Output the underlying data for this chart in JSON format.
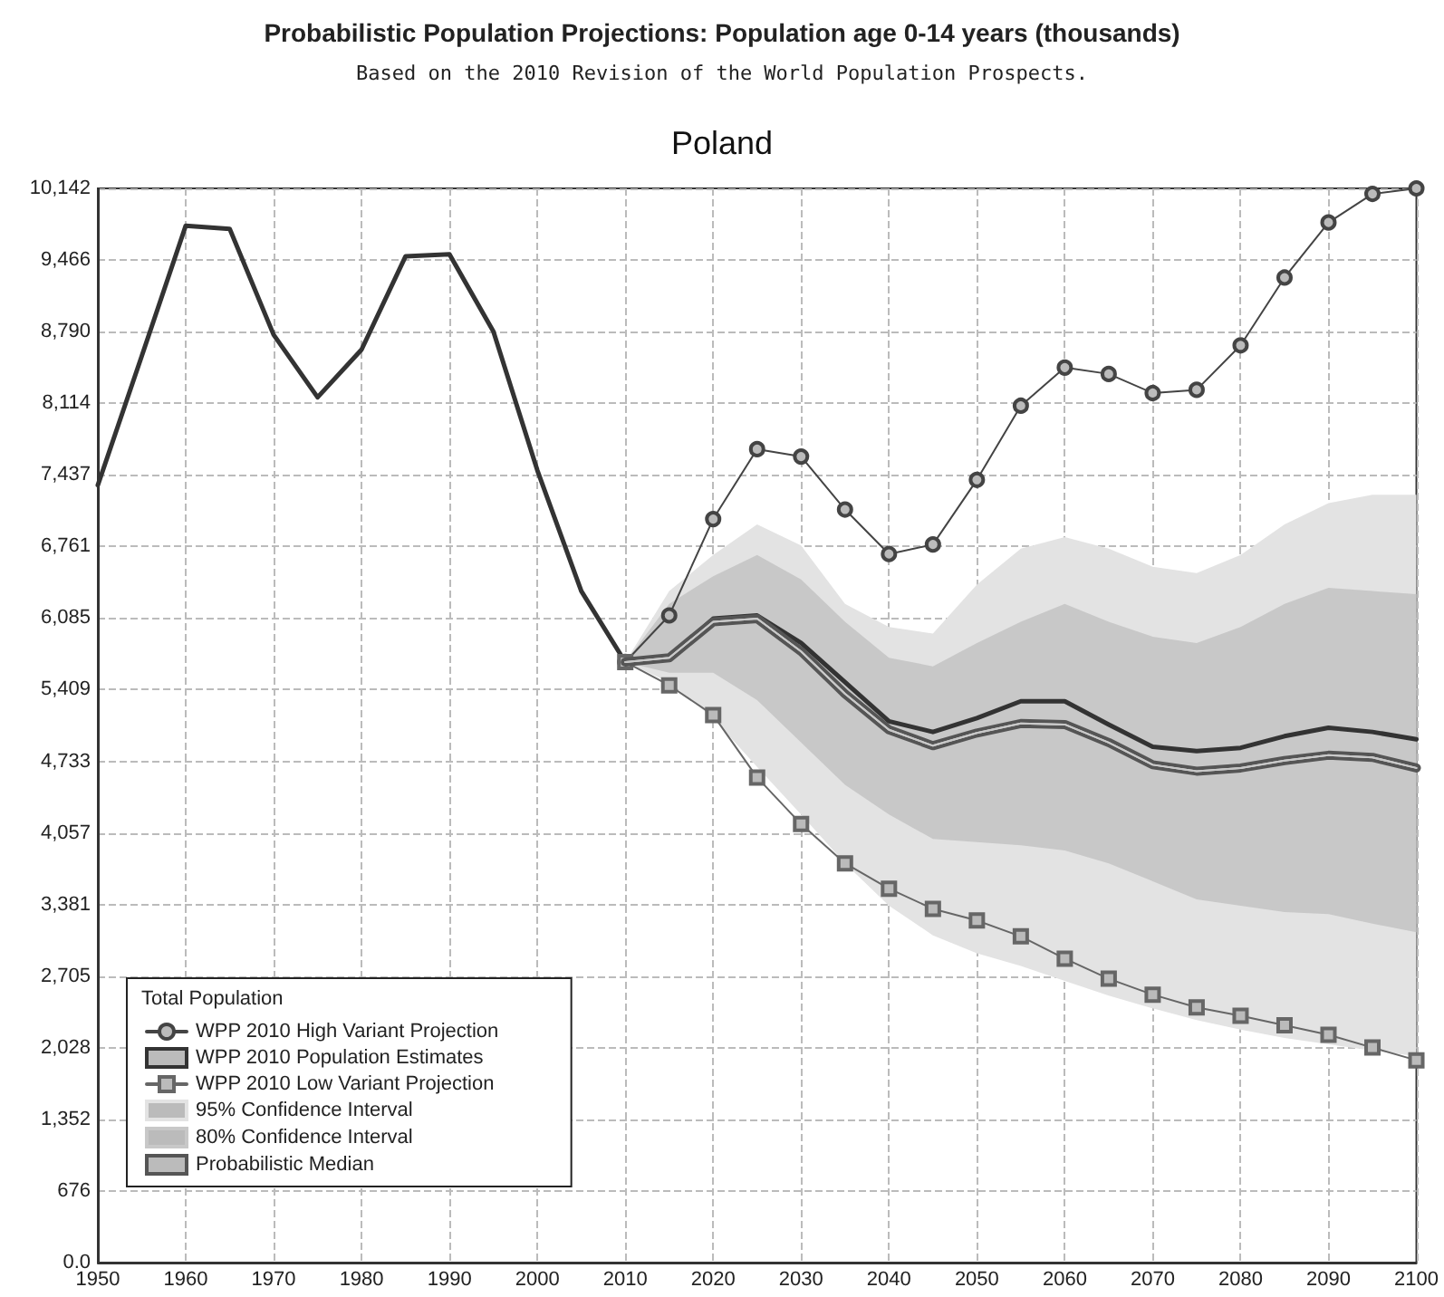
{
  "chart_data": {
    "type": "line",
    "title": "Probabilistic Population Projections: Population age 0-14 years (thousands)",
    "subtitle": "Based on the 2010 Revision of the World Population Prospects.",
    "annotations": [
      "Poland"
    ],
    "legend_title": "Total Population",
    "legend": "bottom left",
    "grid": true,
    "xlim": [
      1950,
      2100
    ],
    "xticks": [
      1950,
      1960,
      1970,
      1980,
      1990,
      2000,
      2010,
      2020,
      2030,
      2040,
      2050,
      2060,
      2070,
      2080,
      2090,
      2100
    ],
    "ylim": [
      0,
      10142
    ],
    "yticks": [
      {
        "value": 0,
        "label": "0.0"
      },
      676,
      {
        "value": 1352,
        "label": "1,352"
      },
      {
        "value": 2028,
        "label": "2,028"
      },
      {
        "value": 2705,
        "label": "2,705"
      },
      {
        "value": 3381,
        "label": "3,381"
      },
      {
        "value": 4057,
        "label": "4,057"
      },
      {
        "value": 4733,
        "label": "4,733"
      },
      {
        "value": 5409,
        "label": "5,409"
      },
      {
        "value": 6085,
        "label": "6,085"
      },
      {
        "value": 6761,
        "label": "6,761"
      },
      {
        "value": 7437,
        "label": "7,437"
      },
      {
        "value": 8114,
        "label": "8,114"
      },
      {
        "value": 8790,
        "label": "8,790"
      },
      {
        "value": 9466,
        "label": "9,466"
      },
      {
        "value": 10142,
        "label": "10,142"
      }
    ],
    "series": [
      {
        "name": "WPP 2010 High Variant Projection",
        "marker": "circle",
        "color": "#444444",
        "x": [
          2010,
          2015,
          2020,
          2025,
          2030,
          2035,
          2040,
          2045,
          2050,
          2055,
          2060,
          2065,
          2070,
          2075,
          2080,
          2085,
          2090,
          2095,
          2100
        ],
        "values": [
          5670,
          6110,
          7020,
          7680,
          7610,
          7110,
          6690,
          6780,
          7390,
          8090,
          8450,
          8390,
          8210,
          8240,
          8660,
          9300,
          9820,
          10090,
          10142
        ]
      },
      {
        "name": "WPP 2010 Population Estimates",
        "marker": "none",
        "color": "#333333",
        "x": [
          1950,
          1955,
          1960,
          1965,
          1970,
          1975,
          1980,
          1985,
          1990,
          1995,
          2000,
          2005,
          2010,
          2015,
          2020,
          2025,
          2030,
          2035,
          2040,
          2045,
          2050,
          2055,
          2060,
          2065,
          2070,
          2075,
          2080,
          2085,
          2090,
          2095,
          2100
        ],
        "values": [
          7340,
          8560,
          9790,
          9760,
          8760,
          8170,
          8620,
          9500,
          9520,
          8790,
          7480,
          6340,
          5670,
          5710,
          6080,
          6110,
          5850,
          5480,
          5110,
          5010,
          5140,
          5300,
          5300,
          5080,
          4870,
          4830,
          4860,
          4970,
          5050,
          5010,
          4940
        ]
      },
      {
        "name": "WPP 2010 Low Variant Projection",
        "marker": "square",
        "color": "#666666",
        "x": [
          2010,
          2015,
          2020,
          2025,
          2030,
          2035,
          2040,
          2045,
          2050,
          2055,
          2060,
          2065,
          2070,
          2075,
          2080,
          2085,
          2090,
          2095,
          2100
        ],
        "values": [
          5670,
          5450,
          5170,
          4580,
          4140,
          3770,
          3530,
          3340,
          3230,
          3080,
          2870,
          2680,
          2530,
          2410,
          2330,
          2240,
          2150,
          2030,
          1910
        ]
      },
      {
        "name": "95% Confidence Interval",
        "marker": "none",
        "color": "#e3e3e3",
        "x": [
          2010,
          2015,
          2020,
          2025,
          2030,
          2035,
          2040,
          2045,
          2050,
          2055,
          2060,
          2065,
          2070,
          2075,
          2080,
          2085,
          2090,
          2095,
          2100
        ],
        "lower": [
          5670,
          5480,
          5140,
          4680,
          4230,
          3770,
          3370,
          3090,
          2920,
          2800,
          2660,
          2520,
          2400,
          2290,
          2200,
          2120,
          2060,
          2000,
          1950
        ],
        "upper": [
          5670,
          6340,
          6680,
          6970,
          6770,
          6220,
          6000,
          5940,
          6400,
          6740,
          6850,
          6740,
          6570,
          6510,
          6680,
          6970,
          7170,
          7250,
          7250
        ],
        "values": [
          5670,
          5710,
          6050,
          6080,
          5770,
          5370,
          5030,
          4880,
          5000,
          5090,
          5080,
          4910,
          4700,
          4640,
          4670,
          4740,
          4790,
          4770,
          4670
        ]
      },
      {
        "name": "80% Confidence Interval",
        "marker": "none",
        "color": "#c8c8c8",
        "x": [
          2010,
          2015,
          2020,
          2025,
          2030,
          2035,
          2040,
          2045,
          2050,
          2055,
          2060,
          2065,
          2070,
          2075,
          2080,
          2085,
          2090,
          2095,
          2100
        ],
        "lower": [
          5670,
          5570,
          5570,
          5310,
          4910,
          4510,
          4230,
          4000,
          3970,
          3940,
          3890,
          3770,
          3600,
          3430,
          3370,
          3310,
          3290,
          3200,
          3120
        ],
        "upper": [
          5670,
          6220,
          6480,
          6680,
          6450,
          6050,
          5710,
          5630,
          5850,
          6050,
          6220,
          6050,
          5910,
          5850,
          6000,
          6220,
          6370,
          6340,
          6310
        ],
        "values": [
          5670,
          5710,
          6050,
          6080,
          5770,
          5370,
          5030,
          4880,
          5000,
          5090,
          5080,
          4910,
          4700,
          4640,
          4670,
          4740,
          4790,
          4770,
          4670
        ]
      },
      {
        "name": "Probabilistic Median",
        "marker": "none",
        "color": "#555555",
        "x": [
          2010,
          2015,
          2020,
          2025,
          2030,
          2035,
          2040,
          2045,
          2050,
          2055,
          2060,
          2065,
          2070,
          2075,
          2080,
          2085,
          2090,
          2095,
          2100
        ],
        "values": [
          5670,
          5710,
          6050,
          6080,
          5770,
          5370,
          5030,
          4880,
          5000,
          5090,
          5080,
          4910,
          4700,
          4640,
          4670,
          4740,
          4790,
          4770,
          4670
        ]
      }
    ]
  }
}
